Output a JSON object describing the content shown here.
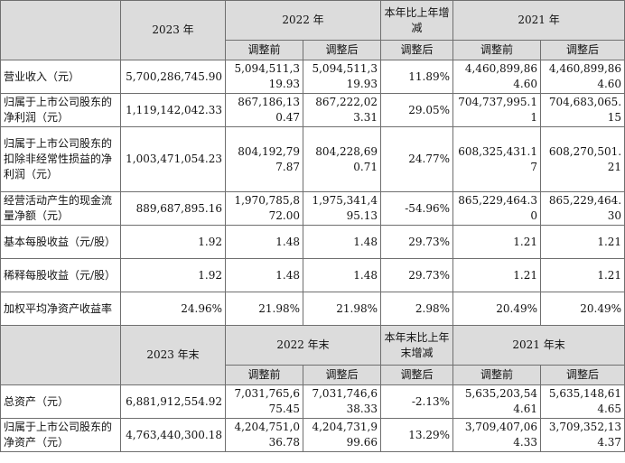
{
  "header1": {
    "y2023": "2023 年",
    "y2022": "2022 年",
    "yoy": "本年比上年增减",
    "y2021": "2021 年",
    "before": "调整前",
    "after": "调整后",
    "after_yoy": "调整后",
    "before_2021": "调整前",
    "after_2021": "调整后"
  },
  "rows1": [
    {
      "label": "营业收入（元）",
      "v2023": "5,700,286,745.90",
      "b2022": "5,094,511,319.93",
      "a2022": "5,094,511,319.93",
      "yoy": "11.89%",
      "b2021": "4,460,899,864.60",
      "a2021": "4,460,899,864.60"
    },
    {
      "label": "归属于上市公司股东的净利润（元）",
      "v2023": "1,119,142,042.33",
      "b2022": "867,186,130.47",
      "a2022": "867,222,023.31",
      "yoy": "29.05%",
      "b2021": "704,737,995.11",
      "a2021": "704,683,065.15"
    },
    {
      "label": "归属于上市公司股东的扣除非经常性损益的净利润（元）",
      "v2023": "1,003,471,054.23",
      "b2022": "804,192,797.87",
      "a2022": "804,228,690.71",
      "yoy": "24.77%",
      "b2021": "608,325,431.17",
      "a2021": "608,270,501.21"
    },
    {
      "label": "经营活动产生的现金流量净额（元）",
      "v2023": "889,687,895.16",
      "b2022": "1,970,785,872.00",
      "a2022": "1,975,341,495.13",
      "yoy": "-54.96%",
      "b2021": "865,229,464.30",
      "a2021": "865,229,464.30"
    },
    {
      "label": "基本每股收益（元/股）",
      "v2023": "1.92",
      "b2022": "1.48",
      "a2022": "1.48",
      "yoy": "29.73%",
      "b2021": "1.21",
      "a2021": "1.21"
    },
    {
      "label": "稀释每股收益（元/股）",
      "v2023": "1.92",
      "b2022": "1.48",
      "a2022": "1.48",
      "yoy": "29.73%",
      "b2021": "1.21",
      "a2021": "1.21"
    },
    {
      "label": "加权平均净资产收益率",
      "v2023": "24.96%",
      "b2022": "21.98%",
      "a2022": "21.98%",
      "yoy": "2.98%",
      "b2021": "20.49%",
      "a2021": "20.49%"
    }
  ],
  "header2": {
    "y2023": "2023 年末",
    "y2022": "2022 年末",
    "yoy": "本年末比上年末增减",
    "y2021": "2021 年末",
    "before": "调整前",
    "after": "调整后",
    "after_yoy": "调整后",
    "before_2021": "调整前",
    "after_2021": "调整后"
  },
  "rows2": [
    {
      "label": "总资产（元）",
      "v2023": "6,881,912,554.92",
      "b2022": "7,031,765,675.45",
      "a2022": "7,031,746,638.33",
      "yoy": "-2.13%",
      "b2021": "5,635,203,544.61",
      "a2021": "5,635,148,614.65"
    },
    {
      "label": "归属于上市公司股东的净资产（元）",
      "v2023": "4,763,440,300.18",
      "b2022": "4,204,751,036.78",
      "a2022": "4,204,731,999.66",
      "yoy": "13.29%",
      "b2021": "3,709,407,064.33",
      "a2021": "3,709,352,134.37"
    }
  ]
}
